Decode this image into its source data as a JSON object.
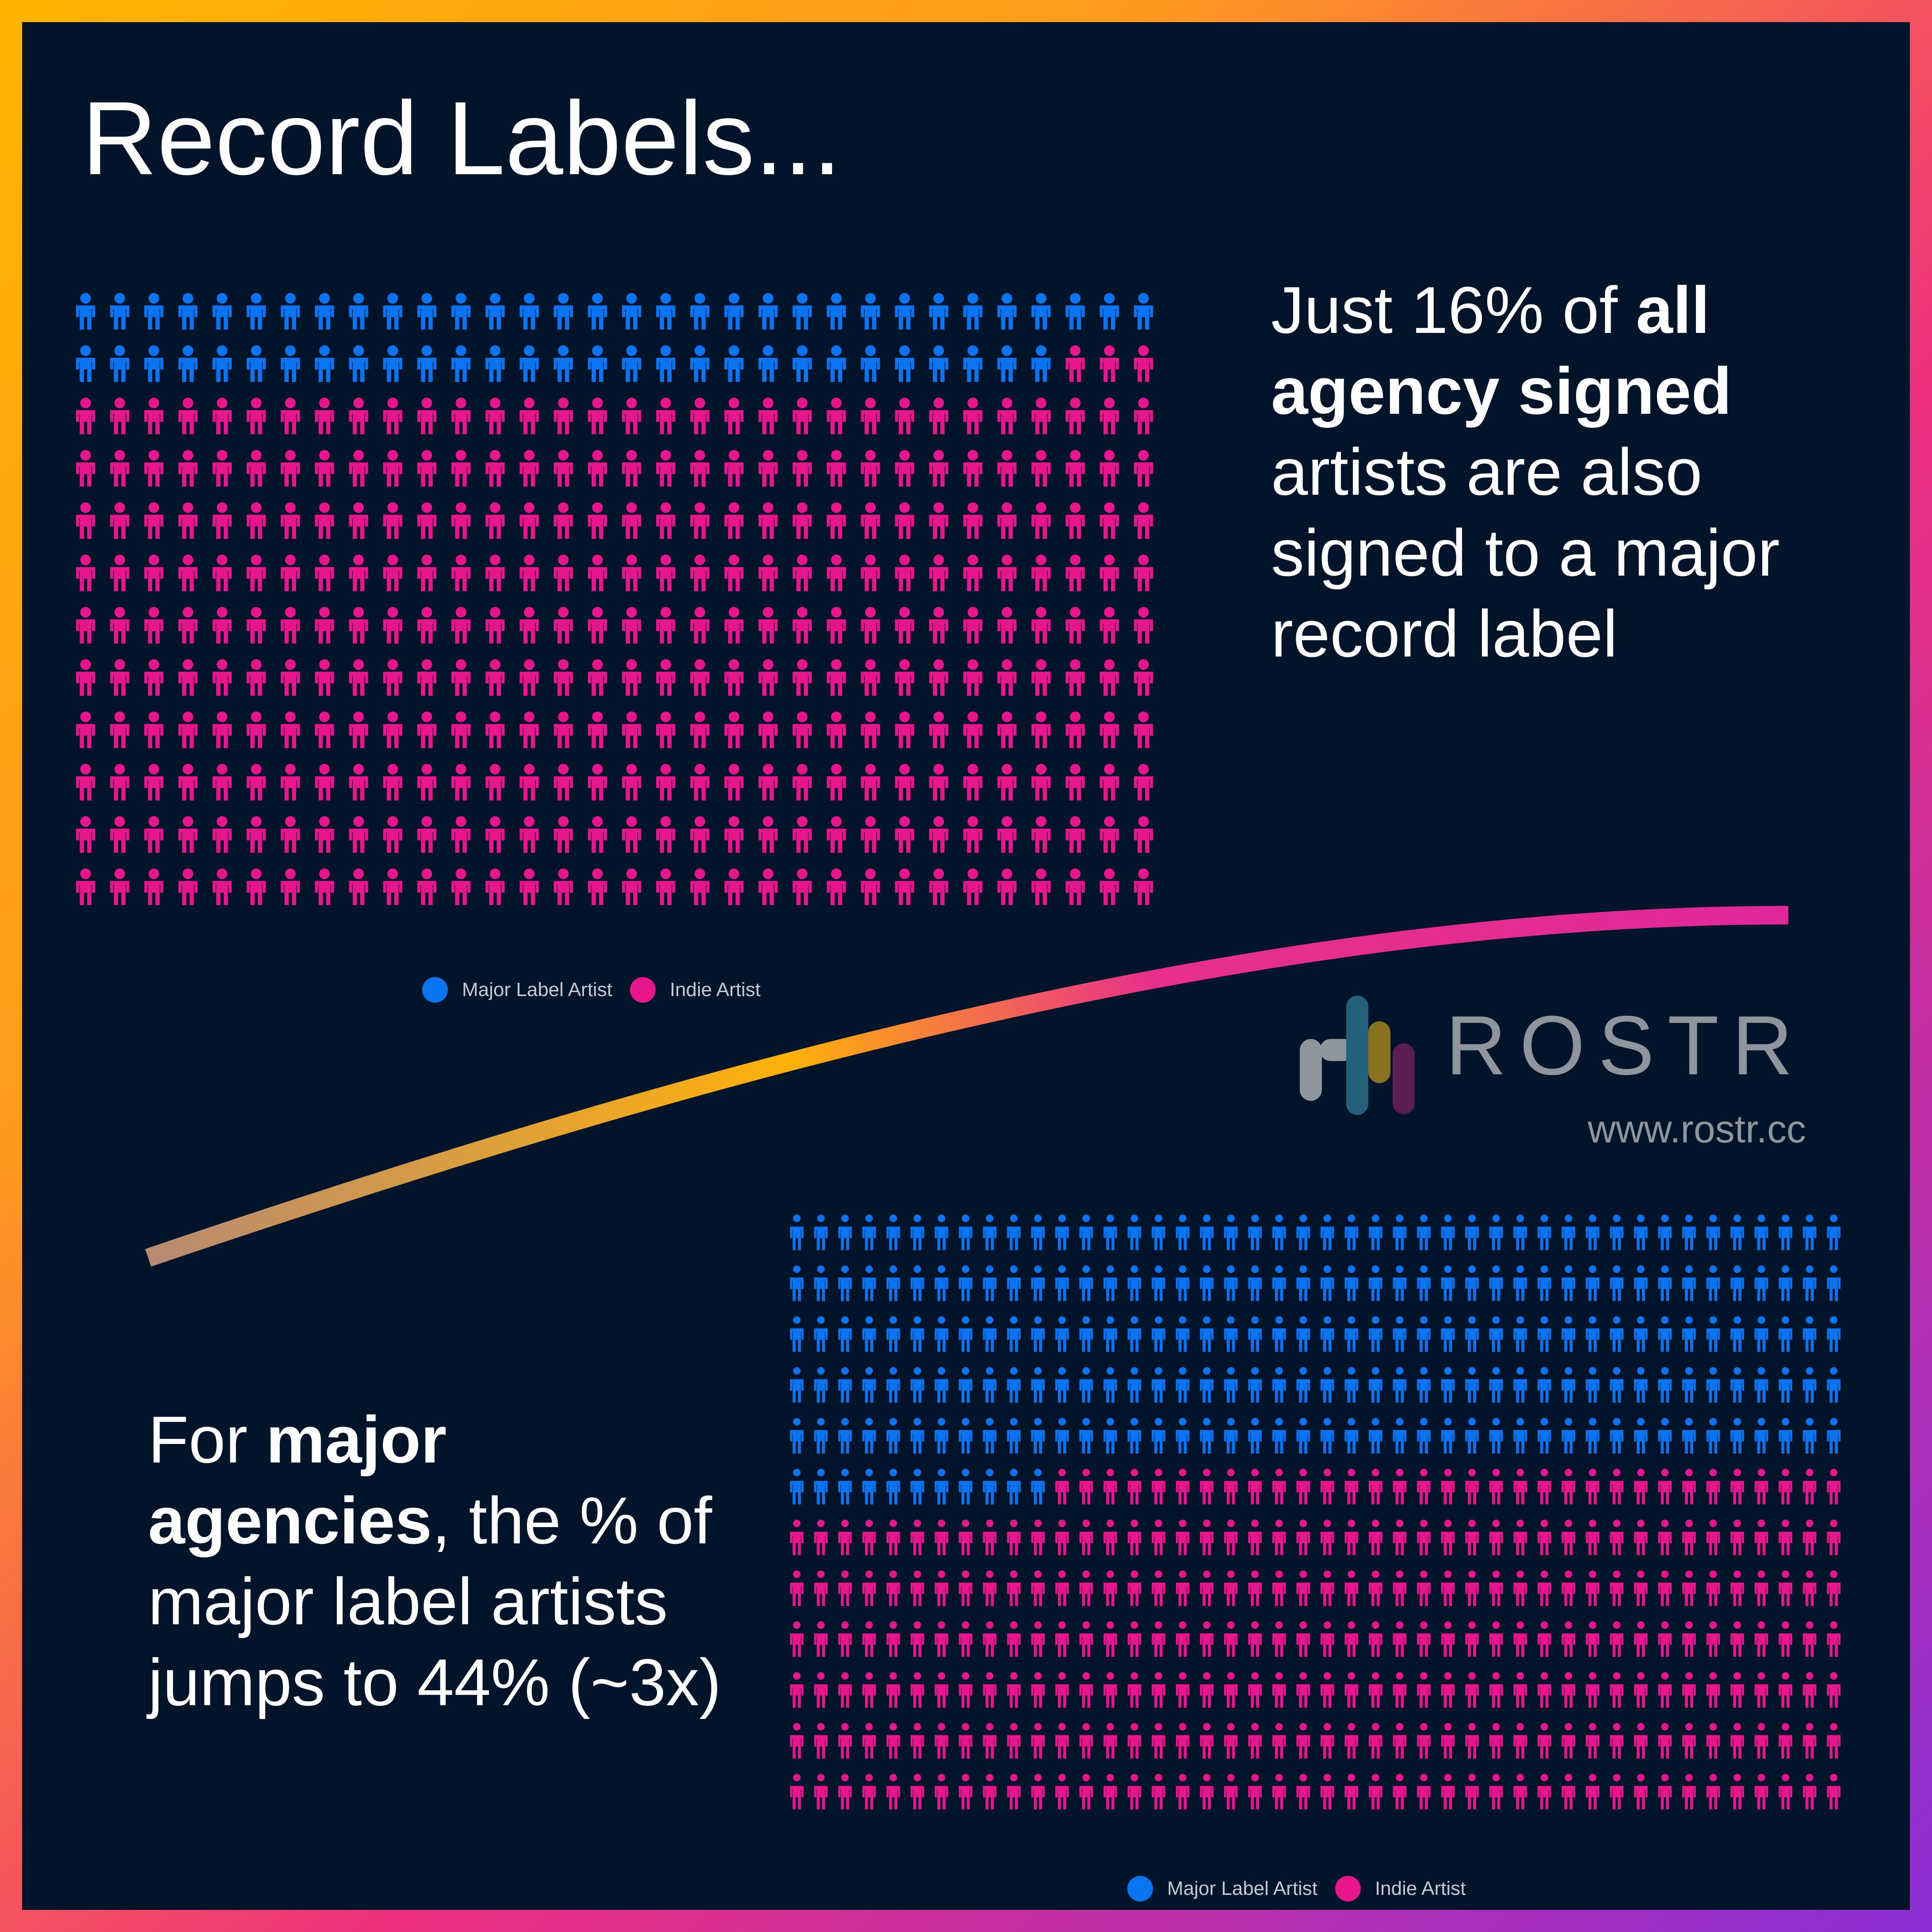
{
  "title": "Record Labels...",
  "captions": {
    "top": {
      "t1": "Just 16% of ",
      "b1": "all agency signed",
      "t2": " artists are also signed to a major record label"
    },
    "bottom": {
      "t1": "For ",
      "b1": "major agencies",
      "t2": ", the % of major label artists jumps to 44% (~3x)"
    }
  },
  "legend": {
    "major_label": "Major Label Artist",
    "indie": "Indie Artist"
  },
  "logo": {
    "name": "ROSTR",
    "url": "www.rostr.cc"
  },
  "colors": {
    "major": "#0a74f2",
    "indie": "#e8168c",
    "background": "#02142a"
  },
  "chart_data": [
    {
      "type": "pictogram",
      "series": [
        {
          "name": "Major Label Artist",
          "count": 61
        },
        {
          "name": "Indie Artist",
          "count": 323
        }
      ],
      "grid": {
        "rows": 12,
        "columns": 32
      },
      "share_major_percent": 16
    },
    {
      "type": "pictogram",
      "series": [
        {
          "name": "Major Label Artist",
          "count": 231
        },
        {
          "name": "Indie Artist",
          "count": 297
        }
      ],
      "grid": {
        "rows": 12,
        "columns": 44
      },
      "share_major_percent": 44
    }
  ]
}
